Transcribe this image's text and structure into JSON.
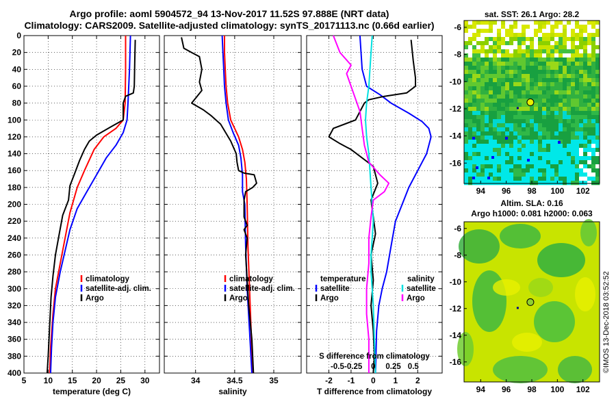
{
  "header": {
    "line1": "Argo profile: aoml 5904572_94 13-Nov-2017 11.52S 97.888E (NRT data)",
    "line2": "Climatology: CARS2009. Satellite-adjusted climatology: synTS_20171113.nc (0.66d earlier)"
  },
  "colors": {
    "climatology": "#ff0000",
    "satellite": "#0000ff",
    "argo": "#000000",
    "sal_sat": "#00e0e0",
    "sal_argo": "#ff00ff"
  },
  "chart_data": [
    {
      "id": "temperature",
      "type": "line",
      "xlabel": "temperature (deg C)",
      "ylabel": "",
      "xlim": [
        5,
        33
      ],
      "ylim": [
        0,
        400
      ],
      "xticks": [
        5,
        10,
        15,
        20,
        25,
        30
      ],
      "yticks": [
        0,
        20,
        40,
        60,
        80,
        100,
        120,
        140,
        160,
        180,
        200,
        220,
        240,
        260,
        280,
        300,
        320,
        340,
        360,
        380,
        400
      ],
      "legend": [
        "climatology",
        "satellite-adj. clim.",
        "Argo"
      ],
      "series": [
        {
          "name": "climatology",
          "color": "#ff0000",
          "points": [
            [
              26.0,
              0
            ],
            [
              26.0,
              40
            ],
            [
              25.9,
              80
            ],
            [
              25.5,
              100
            ],
            [
              24.0,
              110
            ],
            [
              21.5,
              120
            ],
            [
              19.5,
              135
            ],
            [
              17.5,
              160
            ],
            [
              16.0,
              180
            ],
            [
              14.5,
              210
            ],
            [
              13.5,
              240
            ],
            [
              12.5,
              270
            ],
            [
              11.5,
              300
            ],
            [
              11.0,
              330
            ],
            [
              10.5,
              370
            ],
            [
              10.3,
              400
            ]
          ]
        },
        {
          "name": "satellite-adj. clim.",
          "color": "#0000ff",
          "points": [
            [
              27.0,
              0
            ],
            [
              26.8,
              40
            ],
            [
              26.5,
              80
            ],
            [
              26.3,
              100
            ],
            [
              25.5,
              115
            ],
            [
              24.0,
              130
            ],
            [
              22.0,
              145
            ],
            [
              20.0,
              165
            ],
            [
              18.0,
              185
            ],
            [
              16.0,
              205
            ],
            [
              14.5,
              230
            ],
            [
              13.5,
              255
            ],
            [
              12.5,
              280
            ],
            [
              11.5,
              310
            ],
            [
              11.0,
              340
            ],
            [
              10.7,
              370
            ],
            [
              10.5,
              400
            ]
          ]
        },
        {
          "name": "Argo",
          "color": "#000000",
          "points": [
            [
              28.0,
              5
            ],
            [
              27.9,
              30
            ],
            [
              27.8,
              60
            ],
            [
              27.6,
              68
            ],
            [
              26.0,
              72
            ],
            [
              25.5,
              80
            ],
            [
              25.5,
              100
            ],
            [
              23.0,
              108
            ],
            [
              20.0,
              118
            ],
            [
              18.5,
              125
            ],
            [
              17.5,
              135
            ],
            [
              16.5,
              148
            ],
            [
              15.5,
              163
            ],
            [
              14.5,
              178
            ],
            [
              14.2,
              195
            ],
            [
              13.0,
              213
            ],
            [
              12.3,
              235
            ],
            [
              11.5,
              260
            ],
            [
              11.0,
              285
            ],
            [
              10.6,
              310
            ],
            [
              10.3,
              345
            ],
            [
              10.0,
              380
            ],
            [
              9.8,
              400
            ]
          ]
        }
      ]
    },
    {
      "id": "salinity",
      "type": "line",
      "xlabel": "salinity",
      "ylabel": "",
      "xlim": [
        33.6,
        35.35
      ],
      "ylim": [
        0,
        400
      ],
      "xticks": [
        34,
        34.5,
        35
      ],
      "legend": [
        "climatology",
        "satellite-adj. clim.",
        "Argo"
      ],
      "series": [
        {
          "name": "climatology",
          "color": "#ff0000",
          "points": [
            [
              34.37,
              0
            ],
            [
              34.37,
              20
            ],
            [
              34.38,
              40
            ],
            [
              34.39,
              60
            ],
            [
              34.41,
              80
            ],
            [
              34.45,
              100
            ],
            [
              34.55,
              120
            ],
            [
              34.6,
              135
            ],
            [
              34.63,
              150
            ],
            [
              34.65,
              170
            ],
            [
              34.66,
              200
            ],
            [
              34.67,
              250
            ],
            [
              34.69,
              300
            ],
            [
              34.71,
              350
            ],
            [
              34.73,
              400
            ]
          ]
        },
        {
          "name": "satellite-adj. clim.",
          "color": "#0000ff",
          "points": [
            [
              34.34,
              0
            ],
            [
              34.35,
              20
            ],
            [
              34.36,
              40
            ],
            [
              34.37,
              60
            ],
            [
              34.39,
              80
            ],
            [
              34.42,
              100
            ],
            [
              34.48,
              115
            ],
            [
              34.55,
              130
            ],
            [
              34.58,
              145
            ],
            [
              34.6,
              165
            ],
            [
              34.6,
              185
            ],
            [
              34.63,
              200
            ],
            [
              34.64,
              250
            ],
            [
              34.66,
              300
            ],
            [
              34.69,
              350
            ],
            [
              34.72,
              400
            ]
          ]
        },
        {
          "name": "Argo",
          "color": "#000000",
          "points": [
            [
              33.82,
              2
            ],
            [
              33.85,
              15
            ],
            [
              33.95,
              20
            ],
            [
              34.05,
              25
            ],
            [
              34.08,
              40
            ],
            [
              34.05,
              55
            ],
            [
              34.08,
              65
            ],
            [
              34.02,
              72
            ],
            [
              33.95,
              80
            ],
            [
              34.1,
              88
            ],
            [
              34.2,
              95
            ],
            [
              34.32,
              105
            ],
            [
              34.45,
              125
            ],
            [
              34.52,
              140
            ],
            [
              34.53,
              150
            ],
            [
              34.55,
              160
            ],
            [
              34.62,
              163
            ],
            [
              34.75,
              165
            ],
            [
              34.78,
              175
            ],
            [
              34.73,
              180
            ],
            [
              34.64,
              185
            ],
            [
              34.62,
              195
            ],
            [
              34.62,
              215
            ],
            [
              34.66,
              225
            ],
            [
              34.62,
              230
            ],
            [
              34.66,
              240
            ],
            [
              34.64,
              260
            ],
            [
              34.66,
              290
            ],
            [
              34.68,
              320
            ],
            [
              34.72,
              360
            ],
            [
              34.74,
              400
            ]
          ]
        }
      ]
    },
    {
      "id": "difference",
      "type": "line",
      "xlabel": "T difference from climatology",
      "x2label": "S difference from climatology",
      "xlim": [
        -3,
        3.1
      ],
      "ylim": [
        0,
        400
      ],
      "xticks": [
        -2,
        -1,
        0,
        1,
        2
      ],
      "x2ticks": [
        "-0.5",
        "-0.25",
        "0",
        "0.25",
        "0.5"
      ],
      "legend_temperature_title": "temperature",
      "legend_salinity_title": "salinity",
      "legend_temperature": [
        "satellite",
        "Argo"
      ],
      "legend_salinity": [
        "satellite",
        "Argo"
      ],
      "series": [
        {
          "name": "T satellite",
          "color": "#0000ff",
          "points": [
            [
              -0.6,
              0
            ],
            [
              -0.55,
              20
            ],
            [
              -0.5,
              40
            ],
            [
              -0.3,
              60
            ],
            [
              0.3,
              70
            ],
            [
              0.8,
              80
            ],
            [
              1.6,
              92
            ],
            [
              2.2,
              102
            ],
            [
              2.5,
              110
            ],
            [
              2.6,
              120
            ],
            [
              2.4,
              140
            ],
            [
              2.0,
              160
            ],
            [
              1.6,
              180
            ],
            [
              1.3,
              200
            ],
            [
              1.0,
              220
            ],
            [
              0.8,
              250
            ],
            [
              0.6,
              280
            ],
            [
              0.4,
              300
            ],
            [
              0.25,
              320
            ],
            [
              0.15,
              350
            ],
            [
              0.1,
              400
            ]
          ]
        },
        {
          "name": "T Argo",
          "color": "#000000",
          "points": [
            [
              1.7,
              5
            ],
            [
              1.8,
              30
            ],
            [
              1.9,
              50
            ],
            [
              1.9,
              60
            ],
            [
              1.5,
              68
            ],
            [
              0.5,
              72
            ],
            [
              -0.2,
              76
            ],
            [
              -0.4,
              80
            ],
            [
              -0.8,
              100
            ],
            [
              -1.8,
              110
            ],
            [
              -2.0,
              120
            ],
            [
              -1.5,
              128
            ],
            [
              -1.0,
              135
            ],
            [
              -0.5,
              145
            ],
            [
              0.0,
              155
            ],
            [
              0.2,
              175
            ],
            [
              -0.1,
              195
            ],
            [
              0.0,
              215
            ],
            [
              0.1,
              235
            ],
            [
              -0.1,
              260
            ],
            [
              0.0,
              290
            ],
            [
              -0.1,
              320
            ],
            [
              0.0,
              350
            ],
            [
              0.05,
              380
            ],
            [
              0.0,
              400
            ]
          ]
        },
        {
          "name": "S satellite",
          "color": "#00e0e0",
          "points": [
            [
              -0.05,
              0
            ],
            [
              -0.1,
              20
            ],
            [
              -0.15,
              40
            ],
            [
              -0.2,
              60
            ],
            [
              -0.3,
              80
            ],
            [
              -0.35,
              100
            ],
            [
              -0.3,
              120
            ],
            [
              -0.2,
              140
            ],
            [
              -0.15,
              160
            ],
            [
              -0.1,
              180
            ],
            [
              -0.05,
              200
            ],
            [
              0.0,
              220
            ],
            [
              -0.05,
              240
            ],
            [
              -0.1,
              260
            ],
            [
              -0.1,
              280
            ],
            [
              -0.05,
              300
            ],
            [
              0.0,
              320
            ],
            [
              0.05,
              360
            ],
            [
              0.1,
              400
            ]
          ]
        },
        {
          "name": "S Argo",
          "color": "#ff00ff",
          "points": [
            [
              -1.8,
              0
            ],
            [
              -1.5,
              20
            ],
            [
              -1.0,
              35
            ],
            [
              -1.2,
              45
            ],
            [
              -1.0,
              60
            ],
            [
              -0.8,
              75
            ],
            [
              -0.6,
              90
            ],
            [
              -0.5,
              110
            ],
            [
              -0.4,
              130
            ],
            [
              -0.2,
              150
            ],
            [
              0.3,
              165
            ],
            [
              0.7,
              175
            ],
            [
              0.5,
              185
            ],
            [
              0.0,
              195
            ],
            [
              -0.1,
              215
            ],
            [
              -0.2,
              240
            ],
            [
              -0.2,
              270
            ],
            [
              -0.3,
              300
            ],
            [
              -0.3,
              330
            ],
            [
              -0.2,
              360
            ],
            [
              -0.2,
              400
            ]
          ]
        }
      ]
    },
    {
      "id": "sst_map",
      "type": "heatmap",
      "title": "sat. SST: 26.1 Argo: 28.2",
      "xticks": [
        94,
        96,
        98,
        100,
        102
      ],
      "yticks": [
        -6,
        -8,
        -10,
        -12,
        -14,
        -16
      ],
      "xlim": [
        92.7,
        103.3
      ],
      "ylim": [
        -17.5,
        -5.5
      ],
      "argo_location": [
        97.888,
        -11.52
      ]
    },
    {
      "id": "sla_map",
      "type": "heatmap",
      "title": "Altim. SLA: 0.16",
      "subtitle": "Argo h1000: 0.081 h2000: 0.063",
      "xticks": [
        94,
        96,
        98,
        100,
        102
      ],
      "yticks": [
        -6,
        -8,
        -10,
        -12,
        -14,
        -16
      ],
      "xlim": [
        92.7,
        103.3
      ],
      "ylim": [
        -17.5,
        -5.5
      ],
      "argo_location": [
        97.888,
        -11.52
      ]
    }
  ],
  "stamp": "©IMOS 13-Dec-2018 03:52:52"
}
